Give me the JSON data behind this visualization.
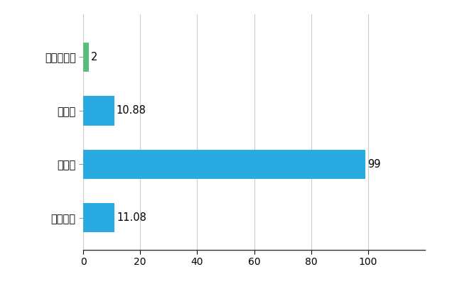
{
  "categories": [
    "全国平均",
    "県最大",
    "県平均",
    "東かがわ市"
  ],
  "values": [
    11.08,
    99,
    10.88,
    2
  ],
  "bar_colors": [
    "#29ABE2",
    "#29ABE2",
    "#29ABE2",
    "#5BBD7A"
  ],
  "value_labels": [
    "11.08",
    "99",
    "10.88",
    "2"
  ],
  "xlim": [
    0,
    120
  ],
  "xticks": [
    0,
    20,
    40,
    60,
    80,
    100
  ],
  "background_color": "#ffffff",
  "grid_color": "#cccccc",
  "bar_height": 0.55,
  "label_fontsize": 10.5,
  "tick_fontsize": 10
}
